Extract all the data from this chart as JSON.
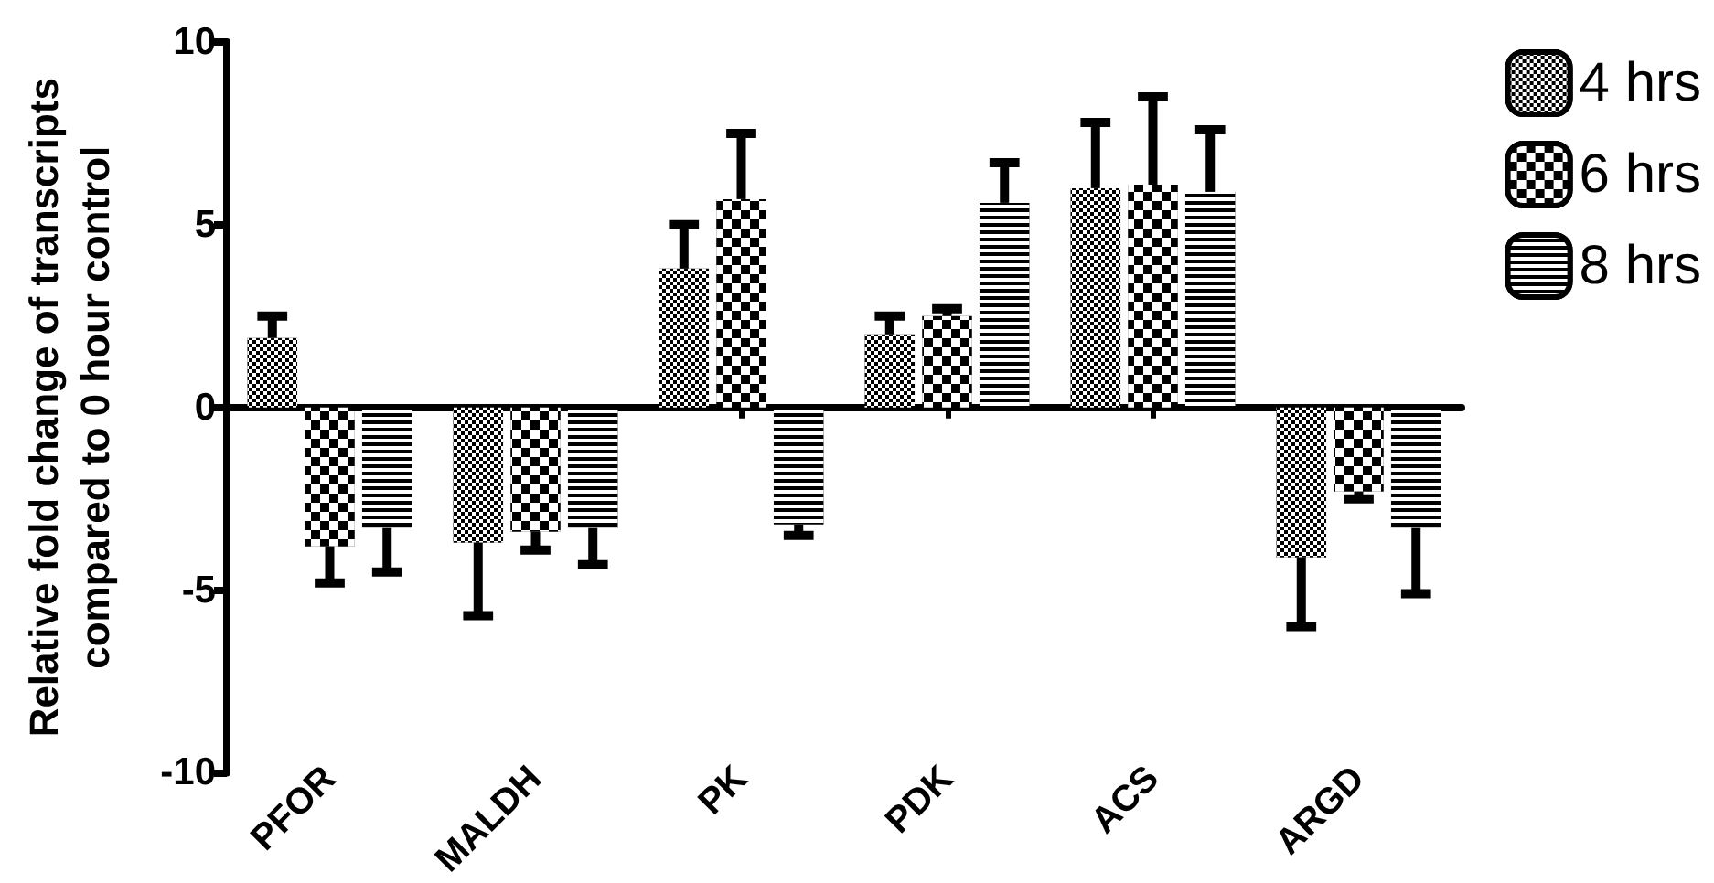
{
  "chart_data": {
    "type": "bar",
    "ylabel": "Relative fold change of transcripts\ncompared to 0 hour control",
    "categories": [
      "PFOR",
      "MALDH",
      "PK",
      "PDK",
      "ACS",
      "ARGD"
    ],
    "series": [
      {
        "name": "4 hrs",
        "color": "#000000",
        "values": [
          1.9,
          -3.7,
          3.8,
          2.0,
          6.0,
          -4.1
        ],
        "errors": [
          [
            1.9,
            2.5
          ],
          [
            -5.7,
            -3.7
          ],
          [
            3.8,
            5.0
          ],
          [
            2.0,
            2.5
          ],
          [
            6.0,
            7.8
          ],
          [
            -6.0,
            -4.1
          ]
        ]
      },
      {
        "name": "6 hrs",
        "color": "#000000",
        "values": [
          -3.8,
          -3.4,
          5.7,
          2.5,
          6.1,
          -2.3
        ],
        "errors": [
          [
            -4.8,
            -3.8
          ],
          [
            -3.9,
            -3.4
          ],
          [
            5.7,
            7.5
          ],
          [
            2.5,
            2.7
          ],
          [
            6.1,
            8.5
          ],
          [
            -2.5,
            -2.3
          ]
        ]
      },
      {
        "name": "8 hrs",
        "color": "#000000",
        "values": [
          -3.3,
          -3.3,
          -3.2,
          5.6,
          5.9,
          -3.3
        ],
        "errors": [
          [
            -4.5,
            -3.3
          ],
          [
            -4.3,
            -3.3
          ],
          [
            -3.5,
            -3.2
          ],
          [
            5.6,
            6.7
          ],
          [
            5.9,
            7.6
          ],
          [
            -5.1,
            -3.3
          ]
        ]
      }
    ],
    "ylim": [
      -10,
      10
    ],
    "yticks": [
      -10,
      -5,
      0,
      5,
      10
    ],
    "legend": "top right"
  }
}
